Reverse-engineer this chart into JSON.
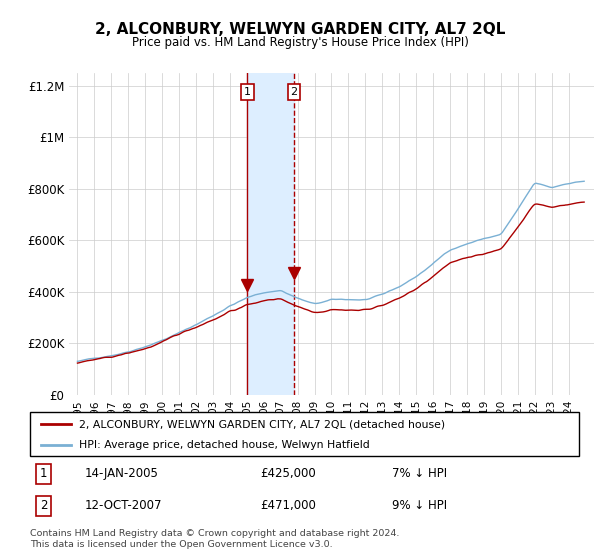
{
  "title": "2, ALCONBURY, WELWYN GARDEN CITY, AL7 2QL",
  "subtitle": "Price paid vs. HM Land Registry's House Price Index (HPI)",
  "legend_label_red": "2, ALCONBURY, WELWYN GARDEN CITY, AL7 2QL (detached house)",
  "legend_label_blue": "HPI: Average price, detached house, Welwyn Hatfield",
  "transaction1_label": "1",
  "transaction1_date": "14-JAN-2005",
  "transaction1_price": "£425,000",
  "transaction1_hpi": "7% ↓ HPI",
  "transaction2_label": "2",
  "transaction2_date": "12-OCT-2007",
  "transaction2_price": "£471,000",
  "transaction2_hpi": "9% ↓ HPI",
  "footer": "Contains HM Land Registry data © Crown copyright and database right 2024.\nThis data is licensed under the Open Government Licence v3.0.",
  "ylim": [
    0,
    1250000
  ],
  "yticks": [
    0,
    200000,
    400000,
    600000,
    800000,
    1000000,
    1200000
  ],
  "ytick_labels": [
    "£0",
    "£200K",
    "£400K",
    "£600K",
    "£800K",
    "£1M",
    "£1.2M"
  ],
  "color_red": "#aa0000",
  "color_blue": "#7ab0d4",
  "color_shade": "#ddeeff",
  "transaction1_x": 2005.04,
  "transaction2_x": 2007.78,
  "transaction1_y": 425000,
  "transaction2_y": 471000,
  "xmin": 1995.0,
  "xmax": 2025.0,
  "background_color": "#ffffff",
  "grid_color": "#cccccc",
  "xtick_years": [
    1995,
    1996,
    1997,
    1998,
    1999,
    2000,
    2001,
    2002,
    2003,
    2004,
    2005,
    2006,
    2007,
    2008,
    2009,
    2010,
    2011,
    2012,
    2013,
    2014,
    2015,
    2016,
    2017,
    2018,
    2019,
    2020,
    2021,
    2022,
    2023,
    2024
  ]
}
